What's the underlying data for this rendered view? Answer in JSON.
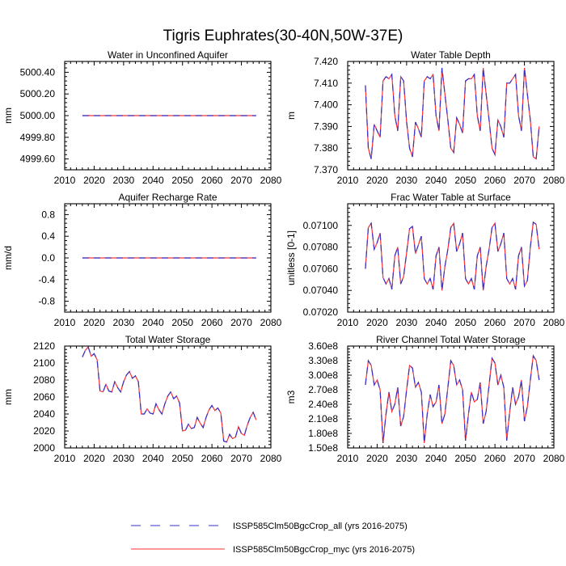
{
  "figure": {
    "title": "Tigris Euphrates(30-40N,50W-37E)",
    "legend": [
      {
        "name": "ISSP585Clm50BgcCrop_all (yrs 2016-2075)",
        "color": "#3333cc",
        "style": "dashed"
      },
      {
        "name": "ISSP585Clm50BgcCrop_myc (yrs 2016-2075)",
        "color": "#ff3333",
        "style": "solid"
      }
    ]
  },
  "chart_data": [
    {
      "type": "line",
      "title": "Water in Unconfined Aquifer",
      "ylabel": "mm",
      "xlim": [
        2010,
        2080
      ],
      "xticks": [
        2010,
        2020,
        2030,
        2040,
        2050,
        2060,
        2070,
        2080
      ],
      "ylim": [
        4999.5,
        5000.5
      ],
      "yticks": [
        "4999.60",
        "4999.80",
        "5000.00",
        "5000.20",
        "5000.40"
      ],
      "x_range": [
        2016,
        2075
      ],
      "series": [
        {
          "name": "ISSP585Clm50BgcCrop_all (yrs 2016-2075)",
          "values": [
            5000,
            5000,
            5000,
            5000,
            5000,
            5000,
            5000,
            5000,
            5000,
            5000,
            5000,
            5000,
            5000,
            5000,
            5000,
            5000,
            5000,
            5000,
            5000,
            5000,
            5000,
            5000,
            5000,
            5000,
            5000,
            5000,
            5000,
            5000,
            5000,
            5000,
            5000,
            5000,
            5000,
            5000,
            5000,
            5000,
            5000,
            5000,
            5000,
            5000,
            5000,
            5000,
            5000,
            5000,
            5000,
            5000,
            5000,
            5000,
            5000,
            5000,
            5000,
            5000,
            5000,
            5000,
            5000,
            5000,
            5000,
            5000,
            5000,
            5000
          ]
        },
        {
          "name": "ISSP585Clm50BgcCrop_myc (yrs 2016-2075)",
          "values": [
            5000,
            5000,
            5000,
            5000,
            5000,
            5000,
            5000,
            5000,
            5000,
            5000,
            5000,
            5000,
            5000,
            5000,
            5000,
            5000,
            5000,
            5000,
            5000,
            5000,
            5000,
            5000,
            5000,
            5000,
            5000,
            5000,
            5000,
            5000,
            5000,
            5000,
            5000,
            5000,
            5000,
            5000,
            5000,
            5000,
            5000,
            5000,
            5000,
            5000,
            5000,
            5000,
            5000,
            5000,
            5000,
            5000,
            5000,
            5000,
            5000,
            5000,
            5000,
            5000,
            5000,
            5000,
            5000,
            5000,
            5000,
            5000,
            5000,
            5000
          ]
        }
      ]
    },
    {
      "type": "line",
      "title": "Water Table Depth",
      "ylabel": "m",
      "xlim": [
        2010,
        2080
      ],
      "xticks": [
        2010,
        2020,
        2030,
        2040,
        2050,
        2060,
        2070,
        2080
      ],
      "ylim": [
        7.37,
        7.42
      ],
      "yticks": [
        "7.370",
        "7.380",
        "7.390",
        "7.400",
        "7.410",
        "7.420"
      ],
      "x_range": [
        2016,
        2075
      ],
      "series": [
        {
          "name": "ISSP585Clm50BgcCrop_all (yrs 2016-2075)",
          "values": [
            7.409,
            7.38,
            7.375,
            7.391,
            7.388,
            7.385,
            7.411,
            7.413,
            7.412,
            7.414,
            7.395,
            7.388,
            7.413,
            7.411,
            7.392,
            7.38,
            7.376,
            7.392,
            7.389,
            7.385,
            7.411,
            7.413,
            7.412,
            7.414,
            7.395,
            7.388,
            7.417,
            7.405,
            7.393,
            7.38,
            7.378,
            7.394,
            7.391,
            7.387,
            7.411,
            7.412,
            7.412,
            7.414,
            7.395,
            7.388,
            7.417,
            7.405,
            7.393,
            7.38,
            7.377,
            7.393,
            7.39,
            7.385,
            7.41,
            7.41,
            7.412,
            7.414,
            7.395,
            7.388,
            7.417,
            7.405,
            7.393,
            7.376,
            7.375,
            7.39
          ]
        },
        {
          "name": "ISSP585Clm50BgcCrop_myc (yrs 2016-2075)",
          "values": [
            7.409,
            7.38,
            7.375,
            7.391,
            7.388,
            7.385,
            7.411,
            7.413,
            7.412,
            7.414,
            7.395,
            7.388,
            7.413,
            7.411,
            7.392,
            7.38,
            7.376,
            7.392,
            7.389,
            7.385,
            7.411,
            7.413,
            7.412,
            7.414,
            7.395,
            7.388,
            7.417,
            7.405,
            7.393,
            7.38,
            7.378,
            7.394,
            7.391,
            7.387,
            7.411,
            7.412,
            7.412,
            7.414,
            7.395,
            7.388,
            7.417,
            7.405,
            7.393,
            7.38,
            7.377,
            7.393,
            7.39,
            7.385,
            7.41,
            7.41,
            7.412,
            7.414,
            7.395,
            7.388,
            7.417,
            7.405,
            7.393,
            7.376,
            7.375,
            7.39
          ]
        }
      ]
    },
    {
      "type": "line",
      "title": "Aquifer Recharge Rate",
      "ylabel": "mm/d",
      "xlim": [
        2010,
        2080
      ],
      "xticks": [
        2010,
        2020,
        2030,
        2040,
        2050,
        2060,
        2070,
        2080
      ],
      "ylim": [
        -1.0,
        1.0
      ],
      "yticks": [
        "-0.8",
        "-0.4",
        "0.0",
        "0.4",
        "0.8"
      ],
      "x_range": [
        2016,
        2075
      ],
      "series": [
        {
          "name": "ISSP585Clm50BgcCrop_all (yrs 2016-2075)",
          "values": [
            0,
            0,
            0,
            0,
            0,
            0,
            0,
            0,
            0,
            0,
            0,
            0,
            0,
            0,
            0,
            0,
            0,
            0,
            0,
            0,
            0,
            0,
            0,
            0,
            0,
            0,
            0,
            0,
            0,
            0,
            0,
            0,
            0,
            0,
            0,
            0,
            0,
            0,
            0,
            0,
            0,
            0,
            0,
            0,
            0,
            0,
            0,
            0,
            0,
            0,
            0,
            0,
            0,
            0,
            0,
            0,
            0,
            0,
            0,
            0
          ]
        },
        {
          "name": "ISSP585Clm50BgcCrop_myc (yrs 2016-2075)",
          "values": [
            0,
            0,
            0,
            0,
            0,
            0,
            0,
            0,
            0,
            0,
            0,
            0,
            0,
            0,
            0,
            0,
            0,
            0,
            0,
            0,
            0,
            0,
            0,
            0,
            0,
            0,
            0,
            0,
            0,
            0,
            0,
            0,
            0,
            0,
            0,
            0,
            0,
            0,
            0,
            0,
            0,
            0,
            0,
            0,
            0,
            0,
            0,
            0,
            0,
            0,
            0,
            0,
            0,
            0,
            0,
            0,
            0,
            0,
            0,
            0
          ]
        }
      ]
    },
    {
      "type": "line",
      "title": "Frac Water Table at Surface",
      "ylabel": "unitless [0-1]",
      "xlim": [
        2010,
        2080
      ],
      "xticks": [
        2010,
        2020,
        2030,
        2040,
        2050,
        2060,
        2070,
        2080
      ],
      "ylim": [
        0.0702,
        0.0712
      ],
      "yticks": [
        "0.07020",
        "0.07040",
        "0.07060",
        "0.07080",
        "0.07100"
      ],
      "x_range": [
        2016,
        2075
      ],
      "series": [
        {
          "name": "ISSP585Clm50BgcCrop_all (yrs 2016-2075)",
          "values": [
            0.0706,
            0.07098,
            0.07102,
            0.07078,
            0.07084,
            0.07093,
            0.07052,
            0.07046,
            0.07051,
            0.07041,
            0.07072,
            0.0708,
            0.07046,
            0.07053,
            0.07075,
            0.07097,
            0.07099,
            0.07074,
            0.07082,
            0.0709,
            0.07051,
            0.07046,
            0.07051,
            0.07041,
            0.07072,
            0.0708,
            0.0704,
            0.07062,
            0.07078,
            0.07098,
            0.07102,
            0.07076,
            0.07083,
            0.07093,
            0.07051,
            0.07046,
            0.07051,
            0.07041,
            0.07072,
            0.0708,
            0.0704,
            0.07062,
            0.07078,
            0.07098,
            0.07102,
            0.07076,
            0.07083,
            0.07093,
            0.07051,
            0.07046,
            0.07051,
            0.07041,
            0.07072,
            0.0708,
            0.07044,
            0.07049,
            0.0708,
            0.07103,
            0.07101,
            0.07078
          ]
        },
        {
          "name": "ISSP585Clm50BgcCrop_myc (yrs 2016-2075)",
          "values": [
            0.0706,
            0.07098,
            0.07102,
            0.07078,
            0.07084,
            0.07093,
            0.07052,
            0.07046,
            0.07051,
            0.07041,
            0.07072,
            0.0708,
            0.07046,
            0.07053,
            0.07075,
            0.07097,
            0.07099,
            0.07074,
            0.07082,
            0.0709,
            0.07051,
            0.07046,
            0.07051,
            0.07041,
            0.07072,
            0.0708,
            0.0704,
            0.07062,
            0.07078,
            0.07098,
            0.07102,
            0.07076,
            0.07083,
            0.07093,
            0.07051,
            0.07046,
            0.07051,
            0.07041,
            0.07072,
            0.0708,
            0.0704,
            0.07062,
            0.07078,
            0.07098,
            0.07102,
            0.07076,
            0.07083,
            0.07093,
            0.07051,
            0.07046,
            0.07051,
            0.07041,
            0.07072,
            0.0708,
            0.07044,
            0.07049,
            0.0708,
            0.07103,
            0.07101,
            0.07078
          ]
        }
      ]
    },
    {
      "type": "line",
      "title": "Total Water Storage",
      "ylabel": "mm",
      "xlim": [
        2010,
        2080
      ],
      "xticks": [
        2010,
        2020,
        2030,
        2040,
        2050,
        2060,
        2070,
        2080
      ],
      "ylim": [
        2000,
        2120
      ],
      "yticks": [
        "2000",
        "2020",
        "2040",
        "2060",
        "2080",
        "2100",
        "2120"
      ],
      "x_range": [
        2016,
        2075
      ],
      "series": [
        {
          "name": "ISSP585Clm50BgcCrop_all (yrs 2016-2075)",
          "values": [
            2107,
            2115,
            2119,
            2108,
            2111,
            2104,
            2067,
            2066,
            2075,
            2067,
            2066,
            2078,
            2071,
            2066,
            2078,
            2086,
            2090,
            2082,
            2085,
            2078,
            2040,
            2040,
            2046,
            2041,
            2040,
            2052,
            2045,
            2040,
            2052,
            2061,
            2066,
            2058,
            2061,
            2053,
            2020,
            2021,
            2028,
            2023,
            2024,
            2036,
            2029,
            2024,
            2036,
            2045,
            2050,
            2044,
            2047,
            2041,
            2008,
            2007,
            2016,
            2011,
            2013,
            2025,
            2017,
            2015,
            2027,
            2036,
            2042,
            2033
          ]
        },
        {
          "name": "ISSP585Clm50BgcCrop_myc (yrs 2016-2075)",
          "values": [
            2107,
            2115,
            2119,
            2108,
            2111,
            2104,
            2067,
            2066,
            2075,
            2067,
            2066,
            2078,
            2071,
            2066,
            2078,
            2086,
            2090,
            2082,
            2085,
            2078,
            2040,
            2040,
            2046,
            2041,
            2040,
            2052,
            2045,
            2040,
            2052,
            2061,
            2066,
            2058,
            2061,
            2053,
            2020,
            2021,
            2028,
            2023,
            2024,
            2036,
            2029,
            2024,
            2036,
            2045,
            2050,
            2044,
            2047,
            2041,
            2008,
            2007,
            2016,
            2011,
            2013,
            2025,
            2017,
            2015,
            2027,
            2036,
            2042,
            2033
          ]
        }
      ]
    },
    {
      "type": "line",
      "title": "River Channel Total Water Storage",
      "ylabel": "m3",
      "xlim": [
        2010,
        2080
      ],
      "xticks": [
        2010,
        2020,
        2030,
        2040,
        2050,
        2060,
        2070,
        2080
      ],
      "ylim": [
        150000000,
        360000000
      ],
      "yticks": [
        "1.50e8",
        "1.80e8",
        "2.10e8",
        "2.40e8",
        "2.70e8",
        "3.00e8",
        "3.30e8",
        "3.60e8"
      ],
      "x_range": [
        2016,
        2075
      ],
      "series": [
        {
          "name": "ISSP585Clm50BgcCrop_all (yrs 2016-2075)",
          "values": [
            280000000,
            330000000,
            320000000,
            280000000,
            290000000,
            270000000,
            160000000,
            220000000,
            265000000,
            225000000,
            240000000,
            275000000,
            195000000,
            215000000,
            270000000,
            320000000,
            315000000,
            275000000,
            285000000,
            265000000,
            160000000,
            220000000,
            260000000,
            235000000,
            245000000,
            280000000,
            200000000,
            220000000,
            275000000,
            330000000,
            320000000,
            280000000,
            290000000,
            270000000,
            165000000,
            220000000,
            265000000,
            245000000,
            250000000,
            285000000,
            200000000,
            225000000,
            280000000,
            335000000,
            325000000,
            280000000,
            300000000,
            275000000,
            165000000,
            225000000,
            275000000,
            240000000,
            255000000,
            290000000,
            205000000,
            235000000,
            290000000,
            340000000,
            330000000,
            290000000
          ]
        },
        {
          "name": "ISSP585Clm50BgcCrop_myc (yrs 2016-2075)",
          "values": [
            280000000,
            330000000,
            320000000,
            280000000,
            290000000,
            270000000,
            160000000,
            220000000,
            265000000,
            225000000,
            240000000,
            275000000,
            195000000,
            215000000,
            270000000,
            320000000,
            315000000,
            275000000,
            285000000,
            265000000,
            160000000,
            220000000,
            260000000,
            235000000,
            245000000,
            280000000,
            200000000,
            220000000,
            275000000,
            330000000,
            320000000,
            280000000,
            290000000,
            270000000,
            165000000,
            220000000,
            265000000,
            245000000,
            250000000,
            285000000,
            200000000,
            225000000,
            280000000,
            335000000,
            325000000,
            280000000,
            300000000,
            275000000,
            165000000,
            225000000,
            275000000,
            240000000,
            255000000,
            290000000,
            205000000,
            235000000,
            290000000,
            340000000,
            330000000,
            290000000
          ]
        }
      ]
    }
  ]
}
